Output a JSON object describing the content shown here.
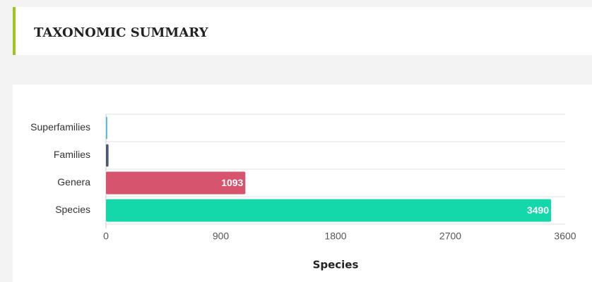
{
  "header": {
    "title": "TAXONOMIC SUMMARY"
  },
  "chart_data": {
    "type": "hbar",
    "categories": [
      "Superfamilies",
      "Families",
      "Genera",
      "Species"
    ],
    "values": [
      10,
      20,
      1093,
      3490
    ],
    "value_labels": [
      null,
      null,
      "1093",
      "3490"
    ],
    "colors": [
      "#4ab8d8",
      "#4a5a70",
      "#d6546e",
      "#14d8aa"
    ],
    "xlim": [
      0,
      3600
    ],
    "xticks": [
      0,
      900,
      1800,
      2700,
      3600
    ],
    "x_label": "Species",
    "grid": true
  }
}
